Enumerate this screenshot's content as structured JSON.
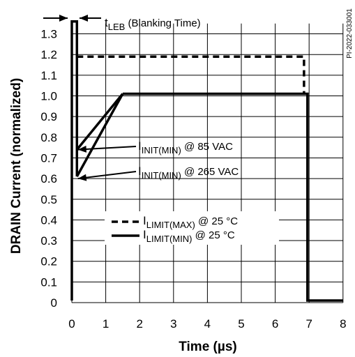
{
  "chart_data": {
    "type": "line",
    "xlabel_prefix": "Time (",
    "xlabel_unit": "µs",
    "xlabel_suffix": ")",
    "ylabel": "DRAIN Current   (normalized)",
    "xlim": [
      0,
      8
    ],
    "ylim": [
      0,
      1.35
    ],
    "grid": true,
    "x_ticks": [
      "0",
      "1",
      "2",
      "3",
      "4",
      "5",
      "6",
      "7",
      "8"
    ],
    "y_ticks": [
      "0",
      "0.1",
      "0.2",
      "0.3",
      "0.4",
      "0.5",
      "0.6",
      "0.7",
      "0.8",
      "0.9",
      "1.0",
      "1.1",
      "1.2",
      "1.3"
    ],
    "series": [
      {
        "name": "I_LIMIT(MAX) @ 25 °C",
        "style": "dashed",
        "x": [
          0.15,
          6.85,
          6.85
        ],
        "y": [
          1.19,
          1.19,
          1.01
        ]
      },
      {
        "name": "I_LIMIT(MIN) @ 25 °C",
        "style": "solid",
        "x": [
          1.5,
          6.95,
          6.95,
          8.0
        ],
        "y": [
          1.01,
          1.01,
          0.01,
          0.01
        ]
      },
      {
        "name": "I_INIT(MIN) @ 85 VAC",
        "style": "solid",
        "x": [
          0.15,
          1.5
        ],
        "y": [
          0.74,
          1.01
        ]
      },
      {
        "name": "I_INIT(MIN) @ 265 VAC",
        "style": "solid",
        "x": [
          0.15,
          1.5
        ],
        "y": [
          0.61,
          1.01
        ]
      },
      {
        "name": "Blanking pulse",
        "style": "solid",
        "x": [
          0.0,
          0.0,
          0.15,
          0.15
        ],
        "y": [
          0.01,
          1.36,
          1.36,
          0.61
        ]
      }
    ],
    "annotations": {
      "tleb": {
        "main": "t",
        "sub": "LEB",
        "rest": " (Blanking Time)"
      },
      "init85": {
        "main": "I",
        "sub": "INIT(MIN)",
        "rest": " @ 85 VAC"
      },
      "init265": {
        "main": "I",
        "sub": "INIT(MIN)",
        "rest": " @ 265 VAC"
      }
    },
    "legend": {
      "position": "center",
      "entries": [
        {
          "main": "I",
          "sub": "LIMIT(MAX)",
          "rest": " @ 25 °C",
          "style": "dashed"
        },
        {
          "main": "I",
          "sub": "LIMIT(MIN)",
          "rest": " @ 25 °C",
          "style": "solid"
        }
      ]
    },
    "part_number": "PI-2022-033001"
  }
}
